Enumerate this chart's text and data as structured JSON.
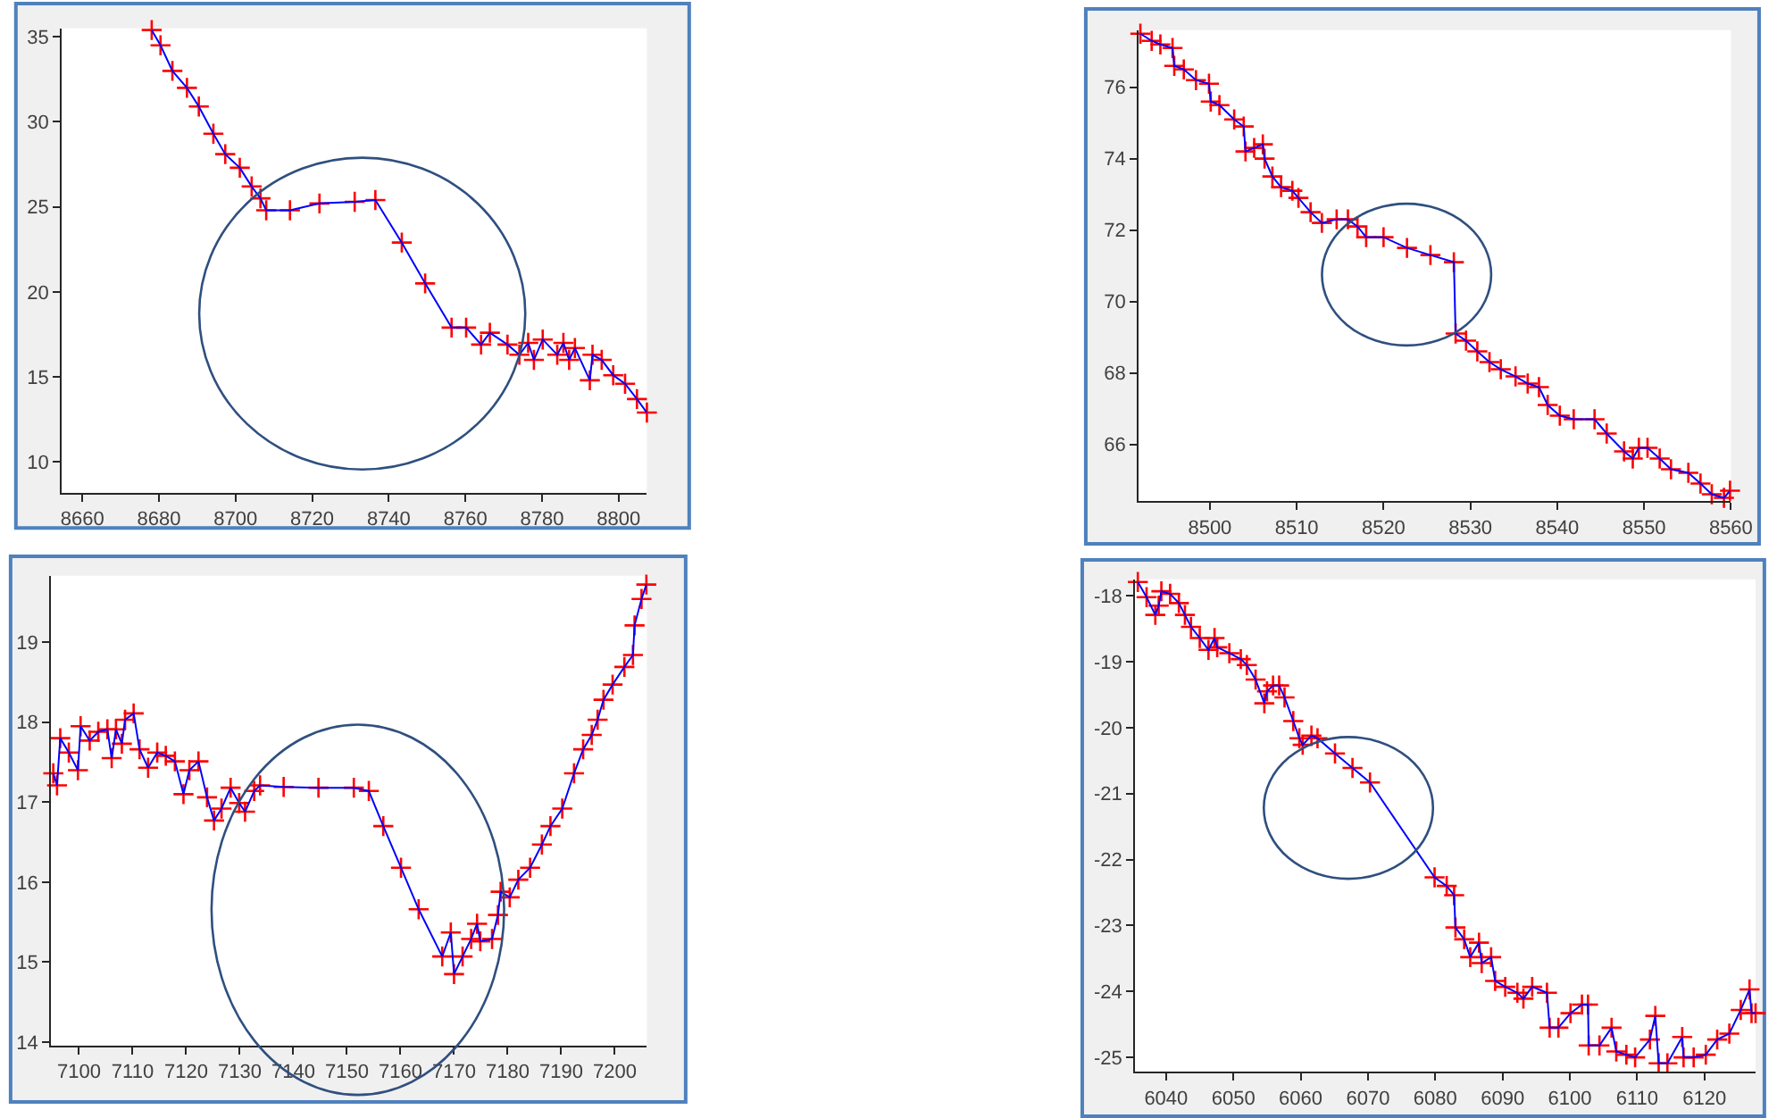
{
  "chart_data": [
    {
      "type": "line",
      "xlim": [
        8654.6,
        8807.4
      ],
      "ylim": [
        8.2,
        35.5
      ],
      "xticks": [
        8660,
        8680,
        8700,
        8720,
        8740,
        8760,
        8780,
        8800
      ],
      "yticks": [
        10,
        15,
        20,
        25,
        30,
        35
      ],
      "x": [
        8678.1,
        8680.4,
        8683.5,
        8687.3,
        8690.4,
        8694.2,
        8697.3,
        8701.1,
        8704.2,
        8706.5,
        8708,
        8714.2,
        8721.9,
        8731.1,
        8736.5,
        8743.4,
        8749.5,
        8756.4,
        8760.2,
        8764.1,
        8766.4,
        8771,
        8774.1,
        8776.4,
        8777.9,
        8780.2,
        8784,
        8785.6,
        8787.1,
        8788.6,
        8792.5,
        8793.2,
        8795.6,
        8798.6,
        8801.7,
        8804.8,
        8807.4
      ],
      "series": [
        {
          "color": "#0000ff",
          "marker": "none",
          "values": [
            35.4,
            34.5,
            33,
            32,
            30.9,
            29.3,
            28.1,
            27.3,
            26.2,
            25.5,
            24.8,
            24.8,
            25.2,
            25.3,
            25.4,
            22.9,
            20.5,
            17.9,
            17.9,
            16.9,
            17.6,
            16.9,
            16.3,
            17,
            16,
            17.2,
            16.3,
            17,
            16,
            16.7,
            14.8,
            16.3,
            16,
            15.1,
            14.6,
            13.7,
            12.9
          ]
        },
        {
          "type": "scatter",
          "color": "#ff0000",
          "marker": "cross",
          "values": [
            35.4,
            34.5,
            33,
            32,
            30.9,
            29.3,
            28.1,
            27.3,
            26.2,
            25.5,
            24.8,
            24.8,
            25.2,
            25.3,
            25.4,
            22.9,
            20.5,
            17.9,
            17.9,
            16.9,
            17.6,
            16.9,
            16.3,
            17,
            16,
            17.2,
            16.3,
            17,
            16,
            16.7,
            14.8,
            16.3,
            16,
            15.1,
            14.6,
            13.7,
            12.9
          ]
        }
      ]
    },
    {
      "type": "line",
      "xlim": [
        8491.8,
        8560
      ],
      "ylim": [
        64.4,
        77.6
      ],
      "xticks": [
        8500,
        8510,
        8520,
        8530,
        8540,
        8550,
        8560
      ],
      "yticks": [
        66,
        68,
        70,
        72,
        74,
        76
      ],
      "x": [
        8492.0,
        8493.3,
        8494.3,
        8495.7,
        8495.9,
        8497.0,
        8498.4,
        8499.9,
        8500.1,
        8501.1,
        8502.8,
        8503.9,
        8504.1,
        8505.1,
        8506.1,
        8506.3,
        8507.2,
        8508.2,
        8509.5,
        8510.2,
        8511.6,
        8512.9,
        8514.6,
        8515.9,
        8517.0,
        8518.0,
        8520.0,
        8522.7,
        8525.4,
        8528.1,
        8528.3,
        8529.5,
        8530.8,
        8532.2,
        8533.5,
        8535.2,
        8536.6,
        8537.9,
        8538.9,
        8540.3,
        8541.9,
        8544.3,
        8545.7,
        8547.7,
        8548.7,
        8549.4,
        8550.4,
        8551.8,
        8553.1,
        8555.1,
        8556.5,
        8557.8,
        8559.2,
        8559.9
      ],
      "series": [
        {
          "color": "#0000ff",
          "marker": "none",
          "values": [
            77.5,
            77.3,
            77.2,
            77.1,
            76.6,
            76.5,
            76.2,
            76.1,
            75.6,
            75.5,
            75.1,
            74.9,
            74.2,
            74.3,
            74.4,
            74.0,
            73.5,
            73.2,
            73.1,
            72.9,
            72.5,
            72.2,
            72.3,
            72.3,
            72.1,
            71.8,
            71.8,
            71.5,
            71.3,
            71.1,
            69.1,
            68.9,
            68.6,
            68.3,
            68.1,
            67.9,
            67.7,
            67.6,
            67.1,
            66.8,
            66.7,
            66.7,
            66.3,
            65.8,
            65.6,
            65.9,
            65.9,
            65.6,
            65.3,
            65.2,
            64.9,
            64.6,
            64.5,
            64.7
          ]
        },
        {
          "type": "scatter",
          "color": "#ff0000",
          "marker": "cross",
          "values": [
            77.5,
            77.3,
            77.2,
            77.1,
            76.6,
            76.5,
            76.2,
            76.1,
            75.6,
            75.5,
            75.1,
            74.9,
            74.2,
            74.3,
            74.4,
            74.0,
            73.5,
            73.2,
            73.1,
            72.9,
            72.5,
            72.2,
            72.3,
            72.3,
            72.1,
            71.8,
            71.8,
            71.5,
            71.3,
            71.1,
            69.1,
            68.9,
            68.6,
            68.3,
            68.1,
            67.9,
            67.7,
            67.6,
            67.1,
            66.8,
            66.7,
            66.7,
            66.3,
            65.8,
            65.6,
            65.9,
            65.9,
            65.6,
            65.3,
            65.2,
            64.9,
            64.6,
            64.5,
            64.7
          ]
        }
      ]
    },
    {
      "type": "line",
      "xlim": [
        7094.8,
        7206
      ],
      "ylim": [
        13.96,
        19.83
      ],
      "xticks": [
        7100,
        7110,
        7120,
        7130,
        7140,
        7150,
        7160,
        7170,
        7180,
        7190,
        7200
      ],
      "yticks": [
        14,
        15,
        16,
        17,
        18,
        19
      ],
      "x": [
        7095.2,
        7095.9,
        7096.5,
        7098.1,
        7099.8,
        7100.3,
        7102.0,
        7103.6,
        7105.3,
        7106.1,
        7106.9,
        7108.0,
        7108.6,
        7110.2,
        7111.3,
        7112.9,
        7114.6,
        7116.2,
        7117.9,
        7119.5,
        7120.6,
        7122.3,
        7123.9,
        7125.2,
        7126.6,
        7128.3,
        7129.9,
        7131.0,
        7132.7,
        7133.8,
        7138.2,
        7144.7,
        7151.3,
        7154.1,
        7156.8,
        7160.1,
        7163.4,
        7167.8,
        7169.4,
        7170.0,
        7171.6,
        7173.2,
        7174.3,
        7174.9,
        7177.1,
        7178.2,
        7178.7,
        7180.4,
        7182.0,
        7184.2,
        7186.4,
        7188.0,
        7190.2,
        7192.4,
        7194.1,
        7195.7,
        7196.8,
        7197.9,
        7199.6,
        7201.8,
        7203.4,
        7203.7,
        7205.0,
        7205.9
      ],
      "series": [
        {
          "color": "#0000ff",
          "marker": "none",
          "values": [
            17.36,
            17.21,
            17.8,
            17.62,
            17.4,
            17.95,
            17.77,
            17.88,
            17.91,
            17.55,
            17.91,
            17.73,
            18.03,
            18.11,
            17.66,
            17.43,
            17.62,
            17.58,
            17.51,
            17.1,
            17.4,
            17.51,
            17.06,
            16.77,
            16.92,
            17.18,
            16.99,
            16.88,
            17.14,
            17.21,
            17.19,
            17.18,
            17.18,
            17.14,
            16.7,
            16.18,
            15.66,
            15.07,
            15.37,
            14.85,
            15.07,
            15.29,
            15.48,
            15.26,
            15.29,
            15.59,
            15.88,
            15.81,
            16.03,
            16.18,
            16.47,
            16.7,
            16.92,
            17.36,
            17.66,
            17.84,
            18.03,
            18.28,
            18.47,
            18.69,
            18.84,
            19.21,
            19.54,
            19.72
          ]
        },
        {
          "type": "scatter",
          "color": "#ff0000",
          "marker": "cross",
          "values": [
            17.36,
            17.21,
            17.8,
            17.62,
            17.4,
            17.95,
            17.77,
            17.88,
            17.91,
            17.55,
            17.91,
            17.73,
            18.03,
            18.11,
            17.66,
            17.43,
            17.62,
            17.58,
            17.51,
            17.1,
            17.4,
            17.51,
            17.06,
            16.77,
            16.92,
            17.18,
            16.99,
            16.88,
            17.14,
            17.21,
            17.19,
            17.18,
            17.18,
            17.14,
            16.7,
            16.18,
            15.66,
            15.07,
            15.37,
            14.85,
            15.07,
            15.29,
            15.48,
            15.26,
            15.29,
            15.59,
            15.88,
            15.81,
            16.03,
            16.18,
            16.47,
            16.7,
            16.92,
            17.36,
            17.66,
            17.84,
            18.03,
            18.28,
            18.47,
            18.69,
            18.84,
            19.21,
            19.54,
            19.72
          ]
        }
      ]
    },
    {
      "type": "line",
      "xlim": [
        6035.4,
        6127.6
      ],
      "ylim": [
        -25.22,
        -17.75
      ],
      "xticks": [
        6040,
        6050,
        6060,
        6070,
        6080,
        6090,
        6100,
        6110,
        6120
      ],
      "yticks": [
        -18,
        -19,
        -20,
        -21,
        -22,
        -23,
        -24,
        -25
      ],
      "x": [
        6035.8,
        6037.1,
        6038.4,
        6038.9,
        6039.3,
        6040.6,
        6041.9,
        6042.8,
        6043.7,
        6045.0,
        6046.3,
        6047.2,
        6047.6,
        6049.4,
        6051.1,
        6052.0,
        6053.3,
        6054.6,
        6055.0,
        6055.9,
        6056.8,
        6057.6,
        6058.9,
        6059.8,
        6060.3,
        6061.6,
        6062.5,
        6065.1,
        6067.7,
        6070.3,
        6079.9,
        6081.7,
        6082.8,
        6083.0,
        6084.3,
        6085.2,
        6086.5,
        6086.9,
        6088.3,
        6088.9,
        6090.4,
        6092.2,
        6093.1,
        6094.4,
        6096.6,
        6097.0,
        6098.3,
        6100.1,
        6101.8,
        6102.7,
        6102.8,
        6104.4,
        6106.2,
        6106.9,
        6108.4,
        6109.7,
        6111.9,
        6112.7,
        6113.2,
        6114.5,
        6116.7,
        6116.9,
        6118.4,
        6120.2,
        6121.9,
        6123.7,
        6125.4,
        6126.7,
        6127.0,
        6127.6
      ],
      "series": [
        {
          "color": "#0000ff",
          "marker": "none",
          "values": [
            -17.79,
            -18.02,
            -18.29,
            -18.15,
            -17.93,
            -17.97,
            -18.11,
            -18.29,
            -18.47,
            -18.64,
            -18.82,
            -18.64,
            -18.78,
            -18.87,
            -18.96,
            -19.05,
            -19.27,
            -19.63,
            -19.45,
            -19.36,
            -19.36,
            -19.54,
            -19.9,
            -20.16,
            -20.26,
            -20.12,
            -20.16,
            -20.39,
            -20.61,
            -20.83,
            -22.27,
            -22.4,
            -22.54,
            -23.03,
            -23.21,
            -23.48,
            -23.26,
            -23.57,
            -23.48,
            -23.84,
            -23.93,
            -24.02,
            -24.11,
            -23.93,
            -24.02,
            -24.55,
            -24.55,
            -24.33,
            -24.2,
            -24.2,
            -24.82,
            -24.82,
            -24.55,
            -24.91,
            -24.96,
            -25.0,
            -24.73,
            -24.37,
            -25.09,
            -25.09,
            -24.69,
            -25.0,
            -25.0,
            -24.96,
            -24.73,
            -24.64,
            -24.28,
            -23.97,
            -24.33,
            -24.33
          ]
        },
        {
          "type": "scatter",
          "color": "#ff0000",
          "marker": "cross",
          "values": [
            -17.79,
            -18.02,
            -18.29,
            -18.15,
            -17.93,
            -17.97,
            -18.11,
            -18.29,
            -18.47,
            -18.64,
            -18.82,
            -18.64,
            -18.78,
            -18.87,
            -18.96,
            -19.05,
            -19.27,
            -19.63,
            -19.45,
            -19.36,
            -19.36,
            -19.54,
            -19.9,
            -20.16,
            -20.26,
            -20.12,
            -20.16,
            -20.39,
            -20.61,
            -20.83,
            -22.27,
            -22.4,
            -22.54,
            -23.03,
            -23.21,
            -23.48,
            -23.26,
            -23.57,
            -23.48,
            -23.84,
            -23.93,
            -24.02,
            -24.11,
            -23.93,
            -24.02,
            -24.55,
            -24.55,
            -24.33,
            -24.2,
            -24.2,
            -24.82,
            -24.82,
            -24.55,
            -24.91,
            -24.96,
            -25.0,
            -24.73,
            -24.37,
            -25.09,
            -25.09,
            -24.69,
            -25.0,
            -25.0,
            -24.96,
            -24.73,
            -24.64,
            -24.28,
            -23.97,
            -24.33,
            -24.33
          ]
        }
      ]
    }
  ]
}
